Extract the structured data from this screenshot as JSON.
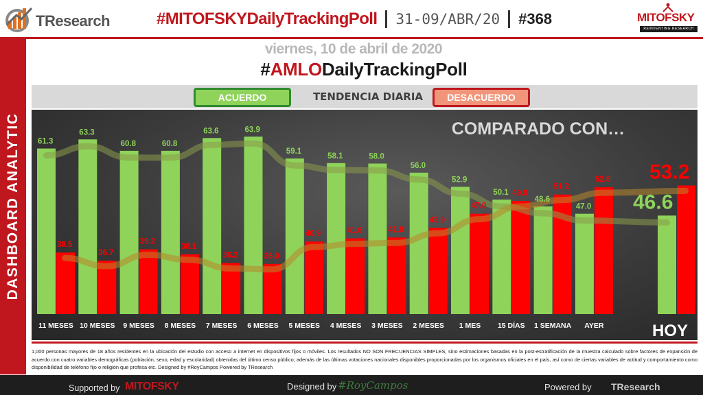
{
  "header": {
    "logo_left": "TResearch",
    "hashtag_title": "#MITOFSKYDailyTrackingPoll",
    "date_range": "31-09/ABR/20",
    "poll_number": "#368",
    "logo_right": "MITOFSKY",
    "logo_right_tagline": "REINVENTING RESEARCH"
  },
  "side_label": "DASHBOARD ANALYTIC",
  "report_date": "viernes, 10 de abril de 2020",
  "poll_title": {
    "prefix": "#",
    "highlight": "AMLO",
    "suffix": "DailyTrackingPoll"
  },
  "legend": {
    "agree": "ACUERDO",
    "trend": "TENDENCIA DIARIA",
    "disagree": "DESACUERDO"
  },
  "colors": {
    "agree": "#8fd35a",
    "disagree": "#ff0000",
    "brand_red": "#c0171e",
    "agree_border": "#2e8b2e",
    "trend_agree": "#8a9a4a",
    "trend_disagree": "#b8862a"
  },
  "chart_data": {
    "type": "bar",
    "title": "COMPARADO CON…",
    "categories": [
      "11 MESES",
      "10 MESES",
      "9 MESES",
      "8 MESES",
      "7 MESES",
      "6 MESES",
      "5 MESES",
      "4 MESES",
      "3 MESES",
      "2 MESES",
      "1 MES",
      "15 DÍAS",
      "1 SEMANA",
      "AYER",
      "HOY"
    ],
    "series": [
      {
        "name": "ACUERDO",
        "values": [
          61.3,
          63.3,
          60.8,
          60.8,
          63.6,
          63.9,
          59.1,
          58.1,
          58.0,
          56.0,
          52.9,
          50.1,
          48.6,
          47.0,
          46.6
        ]
      },
      {
        "name": "DESACUERDO",
        "values": [
          38.5,
          36.7,
          39.2,
          38.1,
          36.2,
          36.0,
          40.9,
          41.6,
          41.8,
          43.9,
          47.0,
          49.8,
          51.2,
          52.8,
          53.2
        ]
      }
    ],
    "ylim": [
      25,
      68
    ],
    "grid": false,
    "trendlines": true
  },
  "footnote": "1,000 personas mayores de 18 años residentes en la ubicación del estudio con acceso a internet en dispositivos fijos o móviles. Los resultados NO SON FRECUENCIAS SIMPLES, sino estimaciones basadas en la post-estratificación de la muestra calculado sobre factores de expansión de acuerdo con cuatro variables demográficas (población, sexo, edad y escolaridad) obtenidas del último censo público; además de las últimas votaciones nacionales disponibles proporcionadas por los organismos oficiales en el país, así como de ciertas variables de actitud y comportamiento como disponibilidad de teléfono fijo o religión que profesa etc. Designed by #RoyCampos Powered by TResearch",
  "footer": {
    "supported_label": "Supported by",
    "supported_brand": "MITOFSKY",
    "designed_label": "Designed by",
    "designed_signature": "#RoyCampos",
    "powered_label": "Powered by",
    "powered_brand": "TResearch"
  }
}
